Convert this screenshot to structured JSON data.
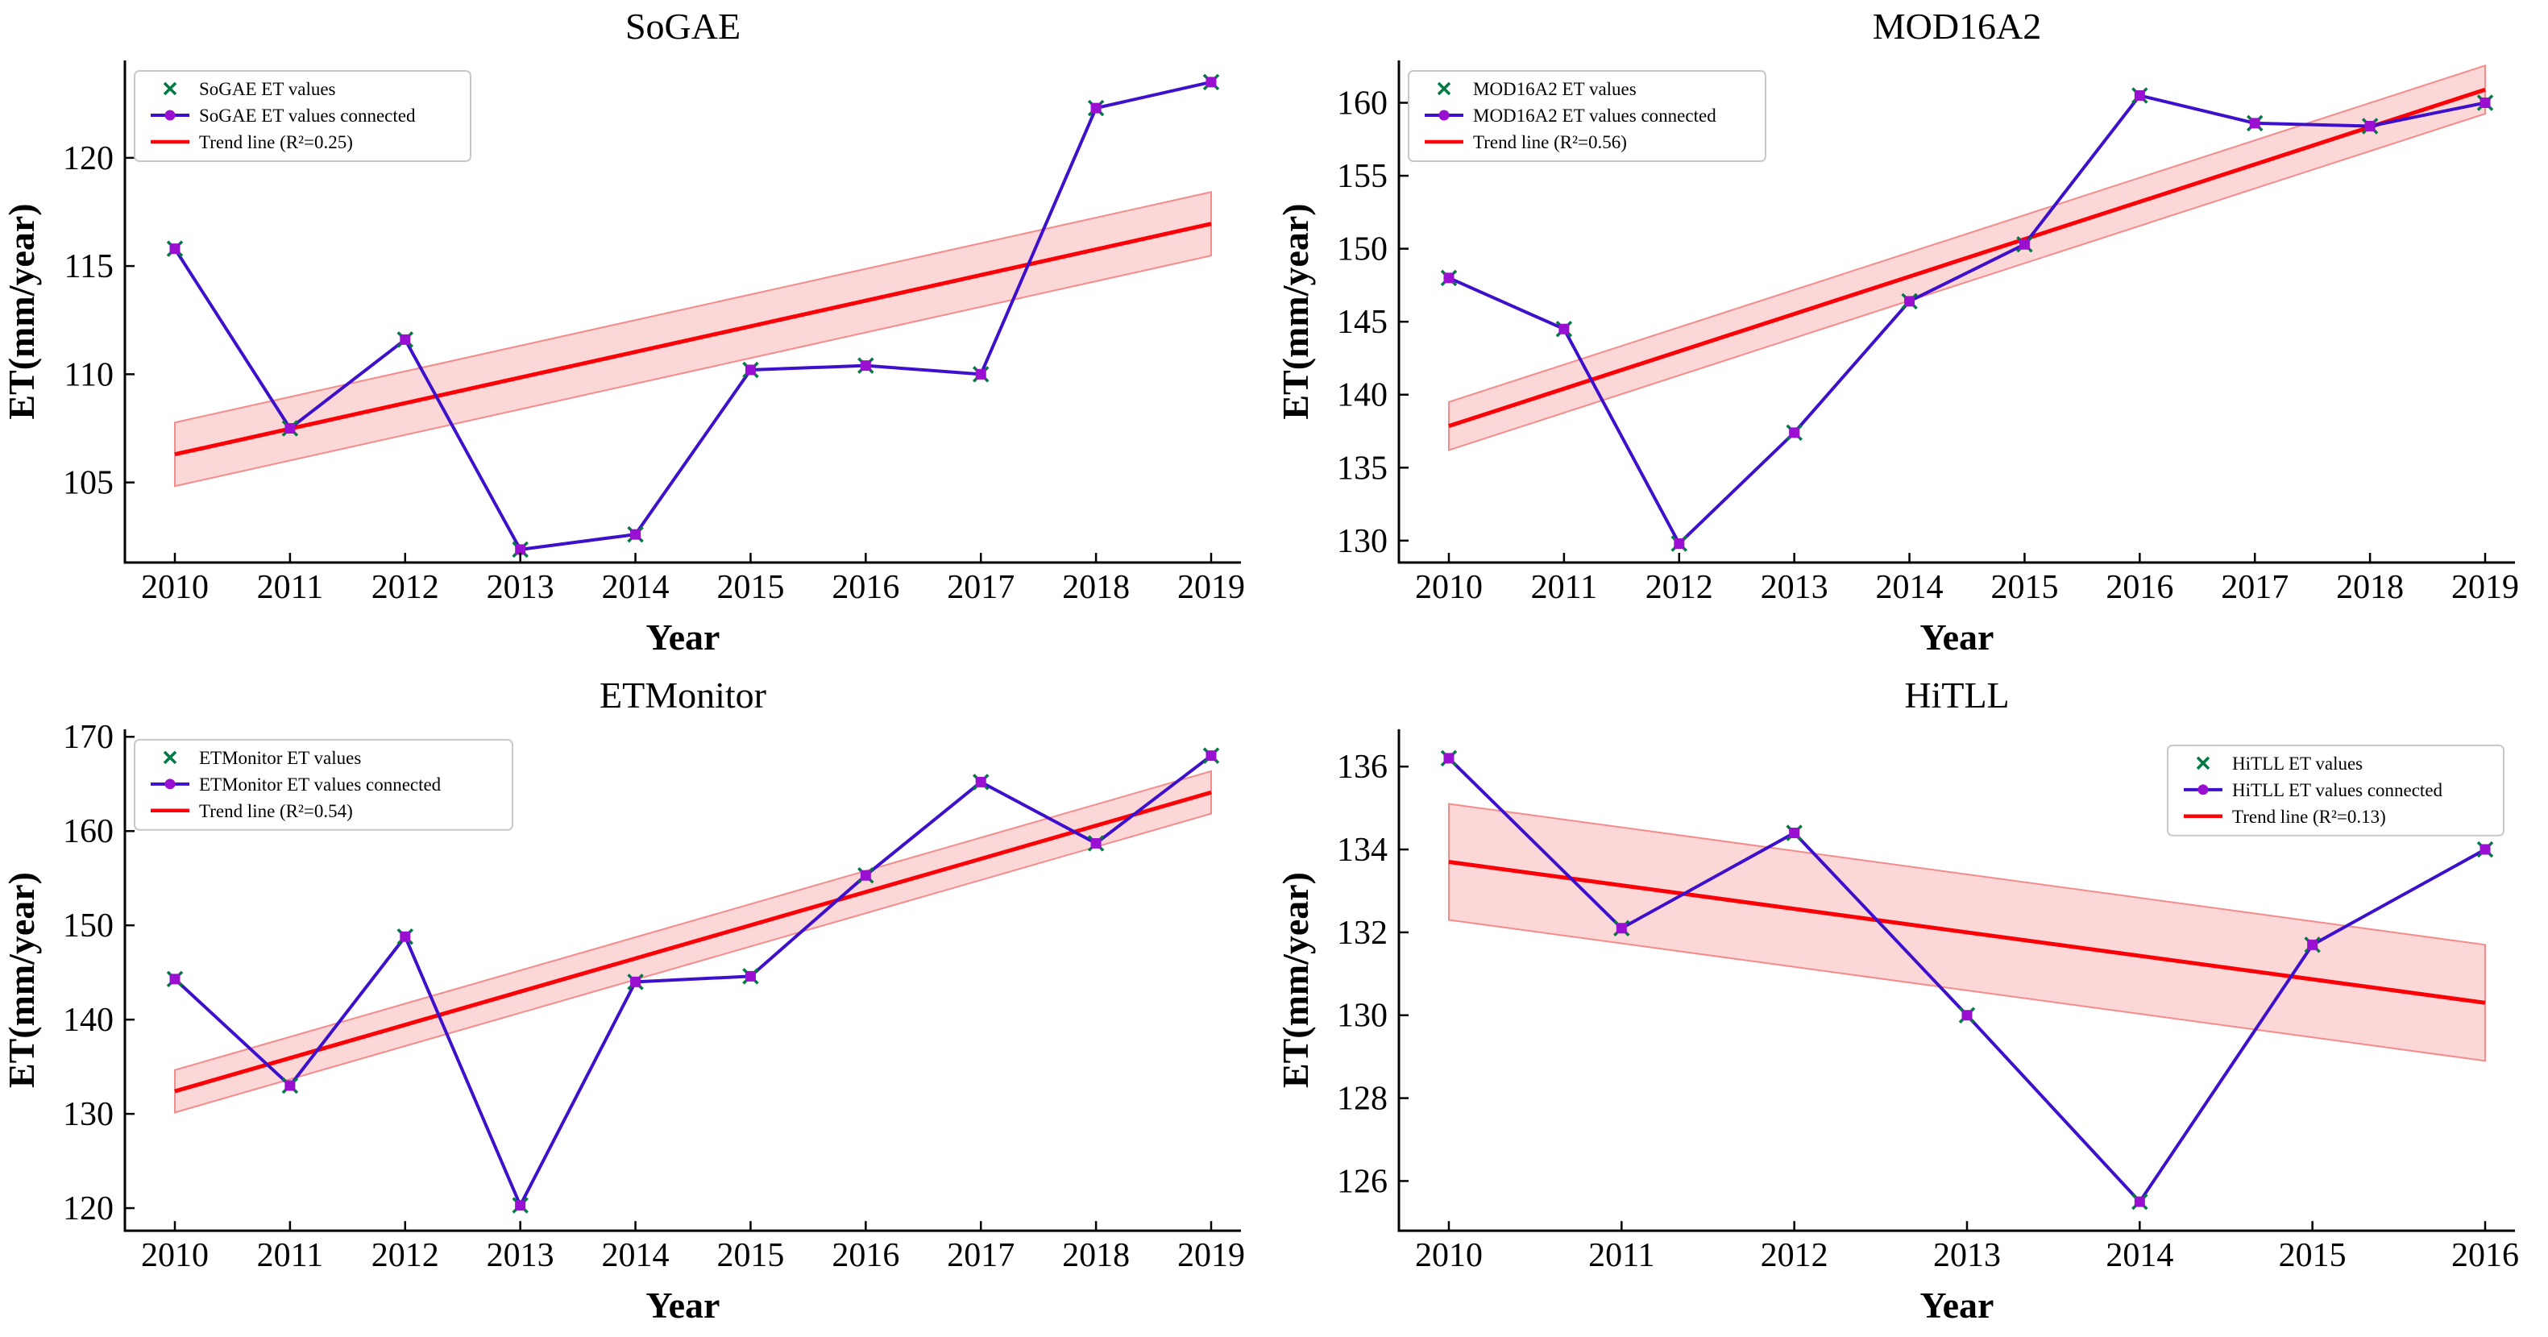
{
  "page": {
    "background": "#ffffff"
  },
  "colors": {
    "connected_line": "#3d10cc",
    "marker_fill": "#9a10d0",
    "x_marker": "#007a40",
    "trend_line": "#fb0006",
    "band_fill": "#fcd7d7",
    "band_edge": "#f58b8b",
    "axis": "#000000",
    "tick_text": "#000000",
    "legend_border": "#c8c8c8",
    "legend_bg": "#ffffff"
  },
  "chart_data": [
    {
      "type": "line",
      "title": "SoGAE",
      "xlabel": "Year",
      "ylabel": "ET(mm/year)",
      "x": [
        2010,
        2011,
        2012,
        2013,
        2014,
        2015,
        2016,
        2017,
        2018,
        2019
      ],
      "series": [
        {
          "name": "SoGAE ET values",
          "style": "x-scatter",
          "values": [
            115.8,
            107.5,
            111.6,
            101.9,
            102.6,
            110.2,
            110.4,
            110.0,
            122.3,
            123.5
          ]
        },
        {
          "name": "SoGAE ET values connected",
          "style": "line-marker",
          "values": [
            115.8,
            107.5,
            111.6,
            101.9,
            102.6,
            110.2,
            110.4,
            110.0,
            122.3,
            123.5
          ]
        },
        {
          "name": "Trend line (R²=0.25)",
          "style": "trend",
          "r_squared": 0.25,
          "trend_start": 106.3,
          "trend_end": 116.95,
          "band_half_width": 1.47
        }
      ],
      "ylim": [
        101.3,
        124.5
      ],
      "yticks": [
        105,
        110,
        115,
        120
      ],
      "legend_position": "top-left",
      "grid": false
    },
    {
      "type": "line",
      "title": "MOD16A2",
      "xlabel": "Year",
      "ylabel": "ET(mm/year)",
      "x": [
        2010,
        2011,
        2012,
        2013,
        2014,
        2015,
        2016,
        2017,
        2018,
        2019
      ],
      "series": [
        {
          "name": "MOD16A2 ET values",
          "style": "x-scatter",
          "values": [
            148.0,
            144.5,
            129.8,
            137.4,
            146.4,
            150.3,
            160.5,
            158.6,
            158.4,
            160.0
          ]
        },
        {
          "name": "MOD16A2 ET values connected",
          "style": "line-marker",
          "values": [
            148.0,
            144.5,
            129.8,
            137.4,
            146.4,
            150.3,
            160.5,
            158.6,
            158.4,
            160.0
          ]
        },
        {
          "name": "Trend line (R²=0.56)",
          "style": "trend",
          "r_squared": 0.56,
          "trend_start": 137.85,
          "trend_end": 160.9,
          "band_half_width": 1.65
        }
      ],
      "ylim": [
        128.5,
        162.9
      ],
      "yticks": [
        130,
        135,
        140,
        145,
        150,
        155,
        160
      ],
      "legend_position": "top-left",
      "grid": false
    },
    {
      "type": "line",
      "title": "ETMonitor",
      "xlabel": "Year",
      "ylabel": "ET(mm/year)",
      "x": [
        2010,
        2011,
        2012,
        2013,
        2014,
        2015,
        2016,
        2017,
        2018,
        2019
      ],
      "series": [
        {
          "name": "ETMonitor ET values",
          "style": "x-scatter",
          "values": [
            144.3,
            133.0,
            148.8,
            120.3,
            144.0,
            144.6,
            155.3,
            165.2,
            158.7,
            168.0
          ]
        },
        {
          "name": "ETMonitor ET values connected",
          "style": "line-marker",
          "values": [
            144.3,
            133.0,
            148.8,
            120.3,
            144.0,
            144.6,
            155.3,
            165.2,
            158.7,
            168.0
          ]
        },
        {
          "name": "Trend line (R²=0.54)",
          "style": "trend",
          "r_squared": 0.54,
          "trend_start": 132.4,
          "trend_end": 164.1,
          "band_half_width": 2.25
        }
      ],
      "ylim": [
        117.6,
        170.8
      ],
      "yticks": [
        120,
        130,
        140,
        150,
        160,
        170
      ],
      "legend_position": "top-left",
      "grid": false
    },
    {
      "type": "line",
      "title": "HiTLL",
      "xlabel": "Year",
      "ylabel": "ET(mm/year)",
      "x": [
        2010,
        2011,
        2012,
        2013,
        2014,
        2015,
        2016
      ],
      "series": [
        {
          "name": "HiTLL ET values",
          "style": "x-scatter",
          "values": [
            136.2,
            132.1,
            134.4,
            130.0,
            125.5,
            131.7,
            134.0
          ]
        },
        {
          "name": "HiTLL ET values connected",
          "style": "line-marker",
          "values": [
            136.2,
            132.1,
            134.4,
            130.0,
            125.5,
            131.7,
            134.0
          ]
        },
        {
          "name": "Trend line (R²=0.13)",
          "style": "trend",
          "r_squared": 0.13,
          "trend_start": 133.7,
          "trend_end": 130.3,
          "band_half_width": 1.4
        }
      ],
      "ylim": [
        124.8,
        136.9
      ],
      "yticks": [
        126,
        128,
        130,
        132,
        134,
        136
      ],
      "legend_position": "top-right",
      "grid": false
    }
  ]
}
